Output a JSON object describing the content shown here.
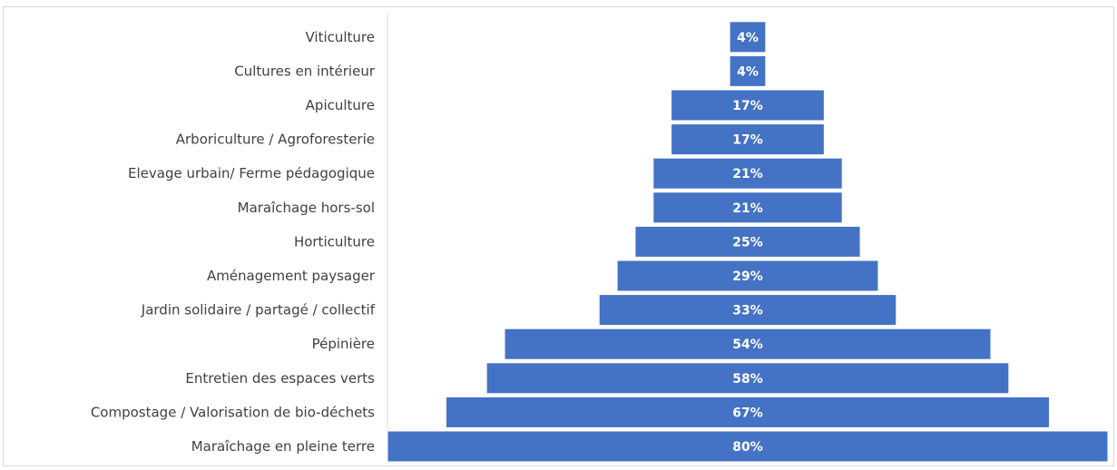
{
  "chart_data": {
    "type": "bar",
    "orientation": "horizontal",
    "style": "funnel-centered",
    "categories": [
      "Viticulture",
      "Cultures en intérieur",
      "Apiculture",
      "Arboriculture / Agroforesterie",
      "Elevage urbain/ Ferme pédagogique",
      "Maraîchage hors-sol",
      "Horticulture",
      "Aménagement paysager",
      "Jardin solidaire / partagé / collectif",
      "Pépinière",
      "Entretien des espaces verts",
      "Compostage / Valorisation de bio-déchets",
      "Maraîchage en pleine terre"
    ],
    "values": [
      4,
      4,
      17,
      17,
      21,
      21,
      25,
      29,
      33,
      54,
      58,
      67,
      80
    ],
    "value_labels": [
      "4%",
      "4%",
      "17%",
      "17%",
      "21%",
      "21%",
      "25%",
      "29%",
      "33%",
      "54%",
      "58%",
      "67%",
      "80%"
    ],
    "unit": "%",
    "xlim": [
      0,
      80
    ],
    "grid": false,
    "legend": "none",
    "bar_color": "#4472c4",
    "label_color": "#ffffff",
    "category_label_color": "#404040",
    "axis_color": "#d9d9d9"
  }
}
